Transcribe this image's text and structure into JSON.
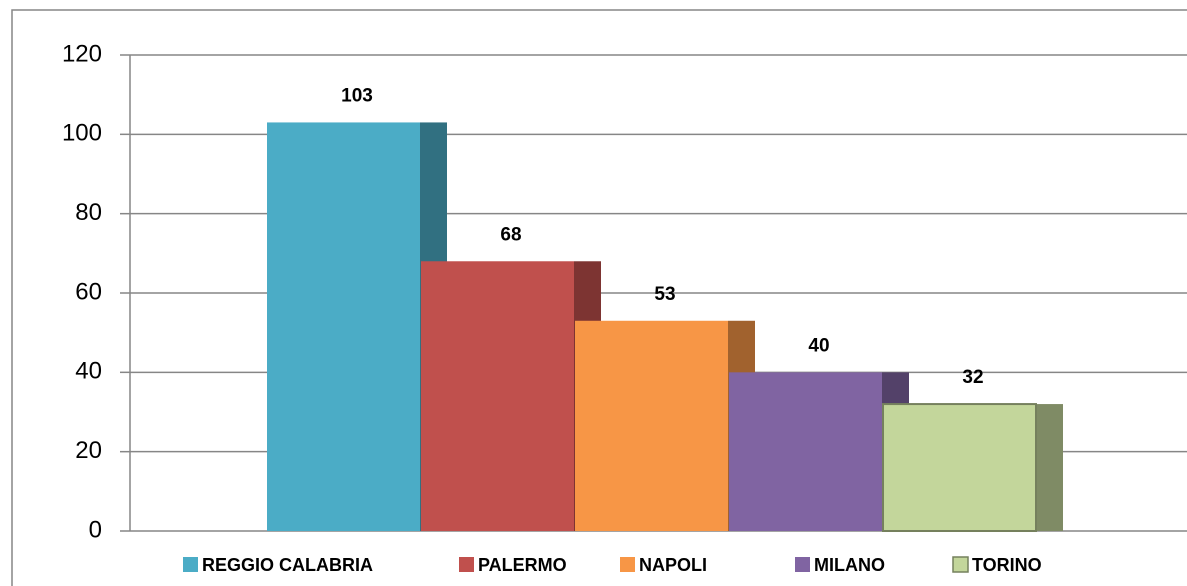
{
  "chart_data": {
    "type": "bar",
    "series": [
      {
        "name": "REGGIO CALABRIA",
        "color": "#4bacc6",
        "values": [
          103
        ]
      },
      {
        "name": "PALERMO",
        "color": "#c0504d",
        "values": [
          68
        ]
      },
      {
        "name": "NAPOLI",
        "color": "#f79646",
        "values": [
          53
        ]
      },
      {
        "name": "MILANO",
        "color": "#8064a2",
        "values": [
          40
        ]
      },
      {
        "name": "TORINO",
        "color": "#c3d69b",
        "values": [
          32
        ]
      }
    ],
    "ylim": [
      0,
      120
    ],
    "yticks": [
      0,
      20,
      40,
      60,
      80,
      100,
      120
    ],
    "grid": true,
    "legend": "bottom"
  }
}
